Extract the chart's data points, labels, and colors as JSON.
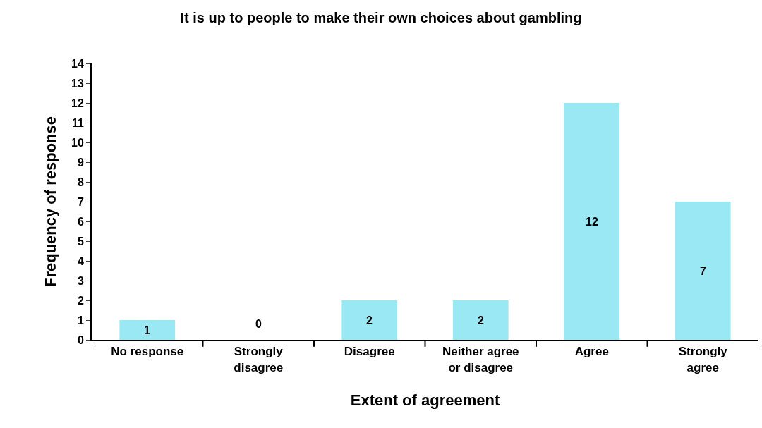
{
  "chart_data": {
    "type": "bar",
    "title": "It is up to people to make their own choices about gambling",
    "xlabel": "Extent of agreement",
    "ylabel": "Frequency of response",
    "categories": [
      "No response",
      "Strongly disagree",
      "Disagree",
      "Neither agree or disagree",
      "Agree",
      "Strongly agree"
    ],
    "values": [
      1,
      0,
      2,
      2,
      12,
      7
    ],
    "color": "#99e8f3",
    "data_labels": true,
    "ylim": [
      0,
      14
    ],
    "yticks": [
      0,
      1,
      2,
      3,
      4,
      5,
      6,
      7,
      8,
      9,
      10,
      11,
      12,
      13,
      14
    ],
    "grid": false
  }
}
